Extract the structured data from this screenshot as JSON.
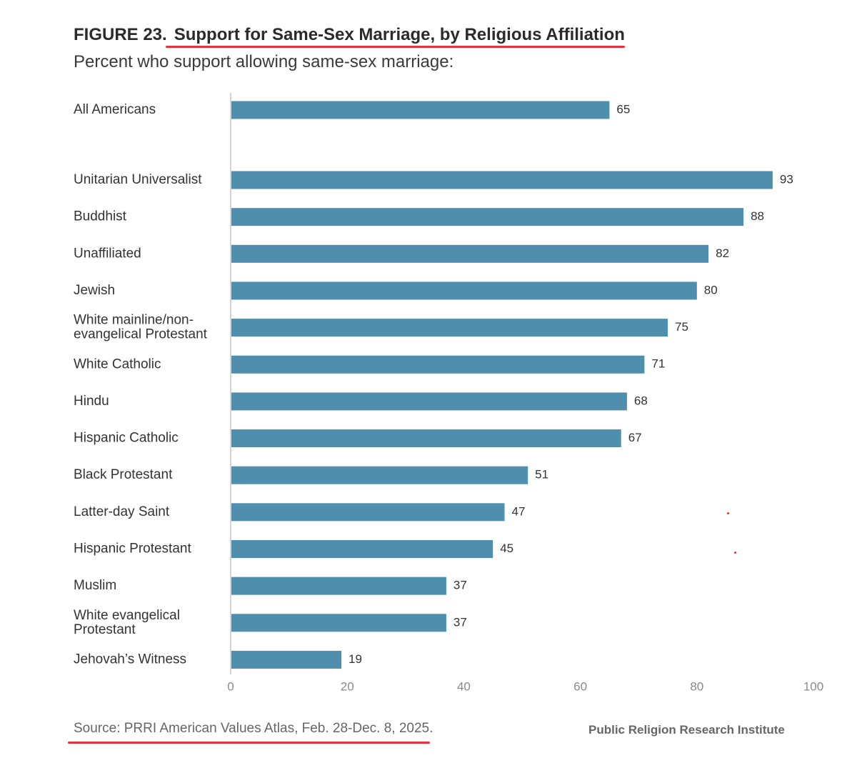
{
  "figure": {
    "number": "FIGURE 23.",
    "title": "Support for Same-Sex Marriage, by Religious Affiliation",
    "subtitle": "Percent who support allowing same-sex marriage:"
  },
  "source": "Source: PRRI American Values Atlas, Feb. 28-Dec. 8, 2025.",
  "organization": "Public Religion Research Institute",
  "colors": {
    "bar": "#4f8fad",
    "highlight_underline": "#e8313f",
    "axis_line": "#d4d4d4",
    "tick_label": "#8a8a8a"
  },
  "chart_data": {
    "type": "bar",
    "orientation": "horizontal",
    "categories": [
      "All Americans",
      "Unitarian Universalist",
      "Buddhist",
      "Unaffiliated",
      "Jewish",
      "White mainline/non-evangelical Protestant",
      "White Catholic",
      "Hindu",
      "Hispanic Catholic",
      "Black Protestant",
      "Latter-day Saint",
      "Hispanic Protestant",
      "Muslim",
      "White evangelical Protestant",
      "Jehovah’s Witness"
    ],
    "category_lines": [
      [
        "All Americans"
      ],
      [
        "Unitarian Universalist"
      ],
      [
        "Buddhist"
      ],
      [
        "Unaffiliated"
      ],
      [
        "Jewish"
      ],
      [
        "White mainline/non-",
        "evangelical Protestant"
      ],
      [
        "White Catholic"
      ],
      [
        "Hindu"
      ],
      [
        "Hispanic Catholic"
      ],
      [
        "Black Protestant"
      ],
      [
        "Latter-day Saint"
      ],
      [
        "Hispanic Protestant"
      ],
      [
        "Muslim"
      ],
      [
        "White evangelical",
        "Protestant"
      ],
      [
        "Jehovah’s Witness"
      ]
    ],
    "values": [
      65,
      93,
      88,
      82,
      80,
      75,
      71,
      68,
      67,
      51,
      47,
      45,
      37,
      37,
      19
    ],
    "xlim": [
      0,
      100
    ],
    "xticks": [
      "0",
      "20",
      "40",
      "60",
      "80",
      "100"
    ],
    "grid": false,
    "legend": "none",
    "title": "Support for Same-Sex Marriage, by Religious Affiliation",
    "xlabel": "",
    "ylabel": ""
  }
}
